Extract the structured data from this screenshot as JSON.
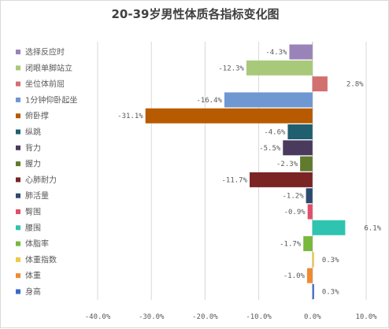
{
  "chart_data": {
    "type": "bar",
    "orientation": "horizontal",
    "title": "20-39岁男性体质各指标变化图",
    "xlim": [
      -40,
      10
    ],
    "x_ticks": [
      -40,
      -30,
      -20,
      -10,
      0,
      10
    ],
    "x_tick_labels": [
      "-40.0%",
      "-30.0%",
      "-20.0%",
      "-10.0%",
      "0.0%",
      "10.0%"
    ],
    "grid": "vertical",
    "legend": "left",
    "categories": [
      "选择反应时",
      "闭眼单脚站立",
      "坐位体前屈",
      "1分钟仰卧起坐",
      "俯卧撑",
      "纵跳",
      "背力",
      "握力",
      "心肺耐力",
      "肺活量",
      "臀围",
      "腰围",
      "体脂率",
      "体重指数",
      "体重",
      "身高"
    ],
    "values": [
      -4.3,
      -12.3,
      2.8,
      -16.4,
      -31.1,
      -4.6,
      -5.5,
      -2.3,
      -11.7,
      -1.2,
      -0.9,
      6.1,
      -1.7,
      0.3,
      -1.0,
      0.3
    ],
    "value_labels": [
      "-4.3%",
      "-12.3%",
      "2.8%",
      "-16.4%",
      "-31.1%",
      "-4.6%",
      "-5.5%",
      "-2.3%",
      "-11.7%",
      "-1.2%",
      "-0.9%",
      "6.1%",
      "-1.7%",
      "0.3%",
      "-1.0%",
      "0.3%"
    ],
    "colors": [
      "#9983b8",
      "#a9c97a",
      "#d26f6f",
      "#6f97d1",
      "#b85a00",
      "#1f5f6f",
      "#4a3a5e",
      "#607a2e",
      "#7b2424",
      "#2c4a6e",
      "#e04e6a",
      "#2ec4b0",
      "#78b83c",
      "#f0c846",
      "#f08a30",
      "#3a6ac8"
    ]
  }
}
